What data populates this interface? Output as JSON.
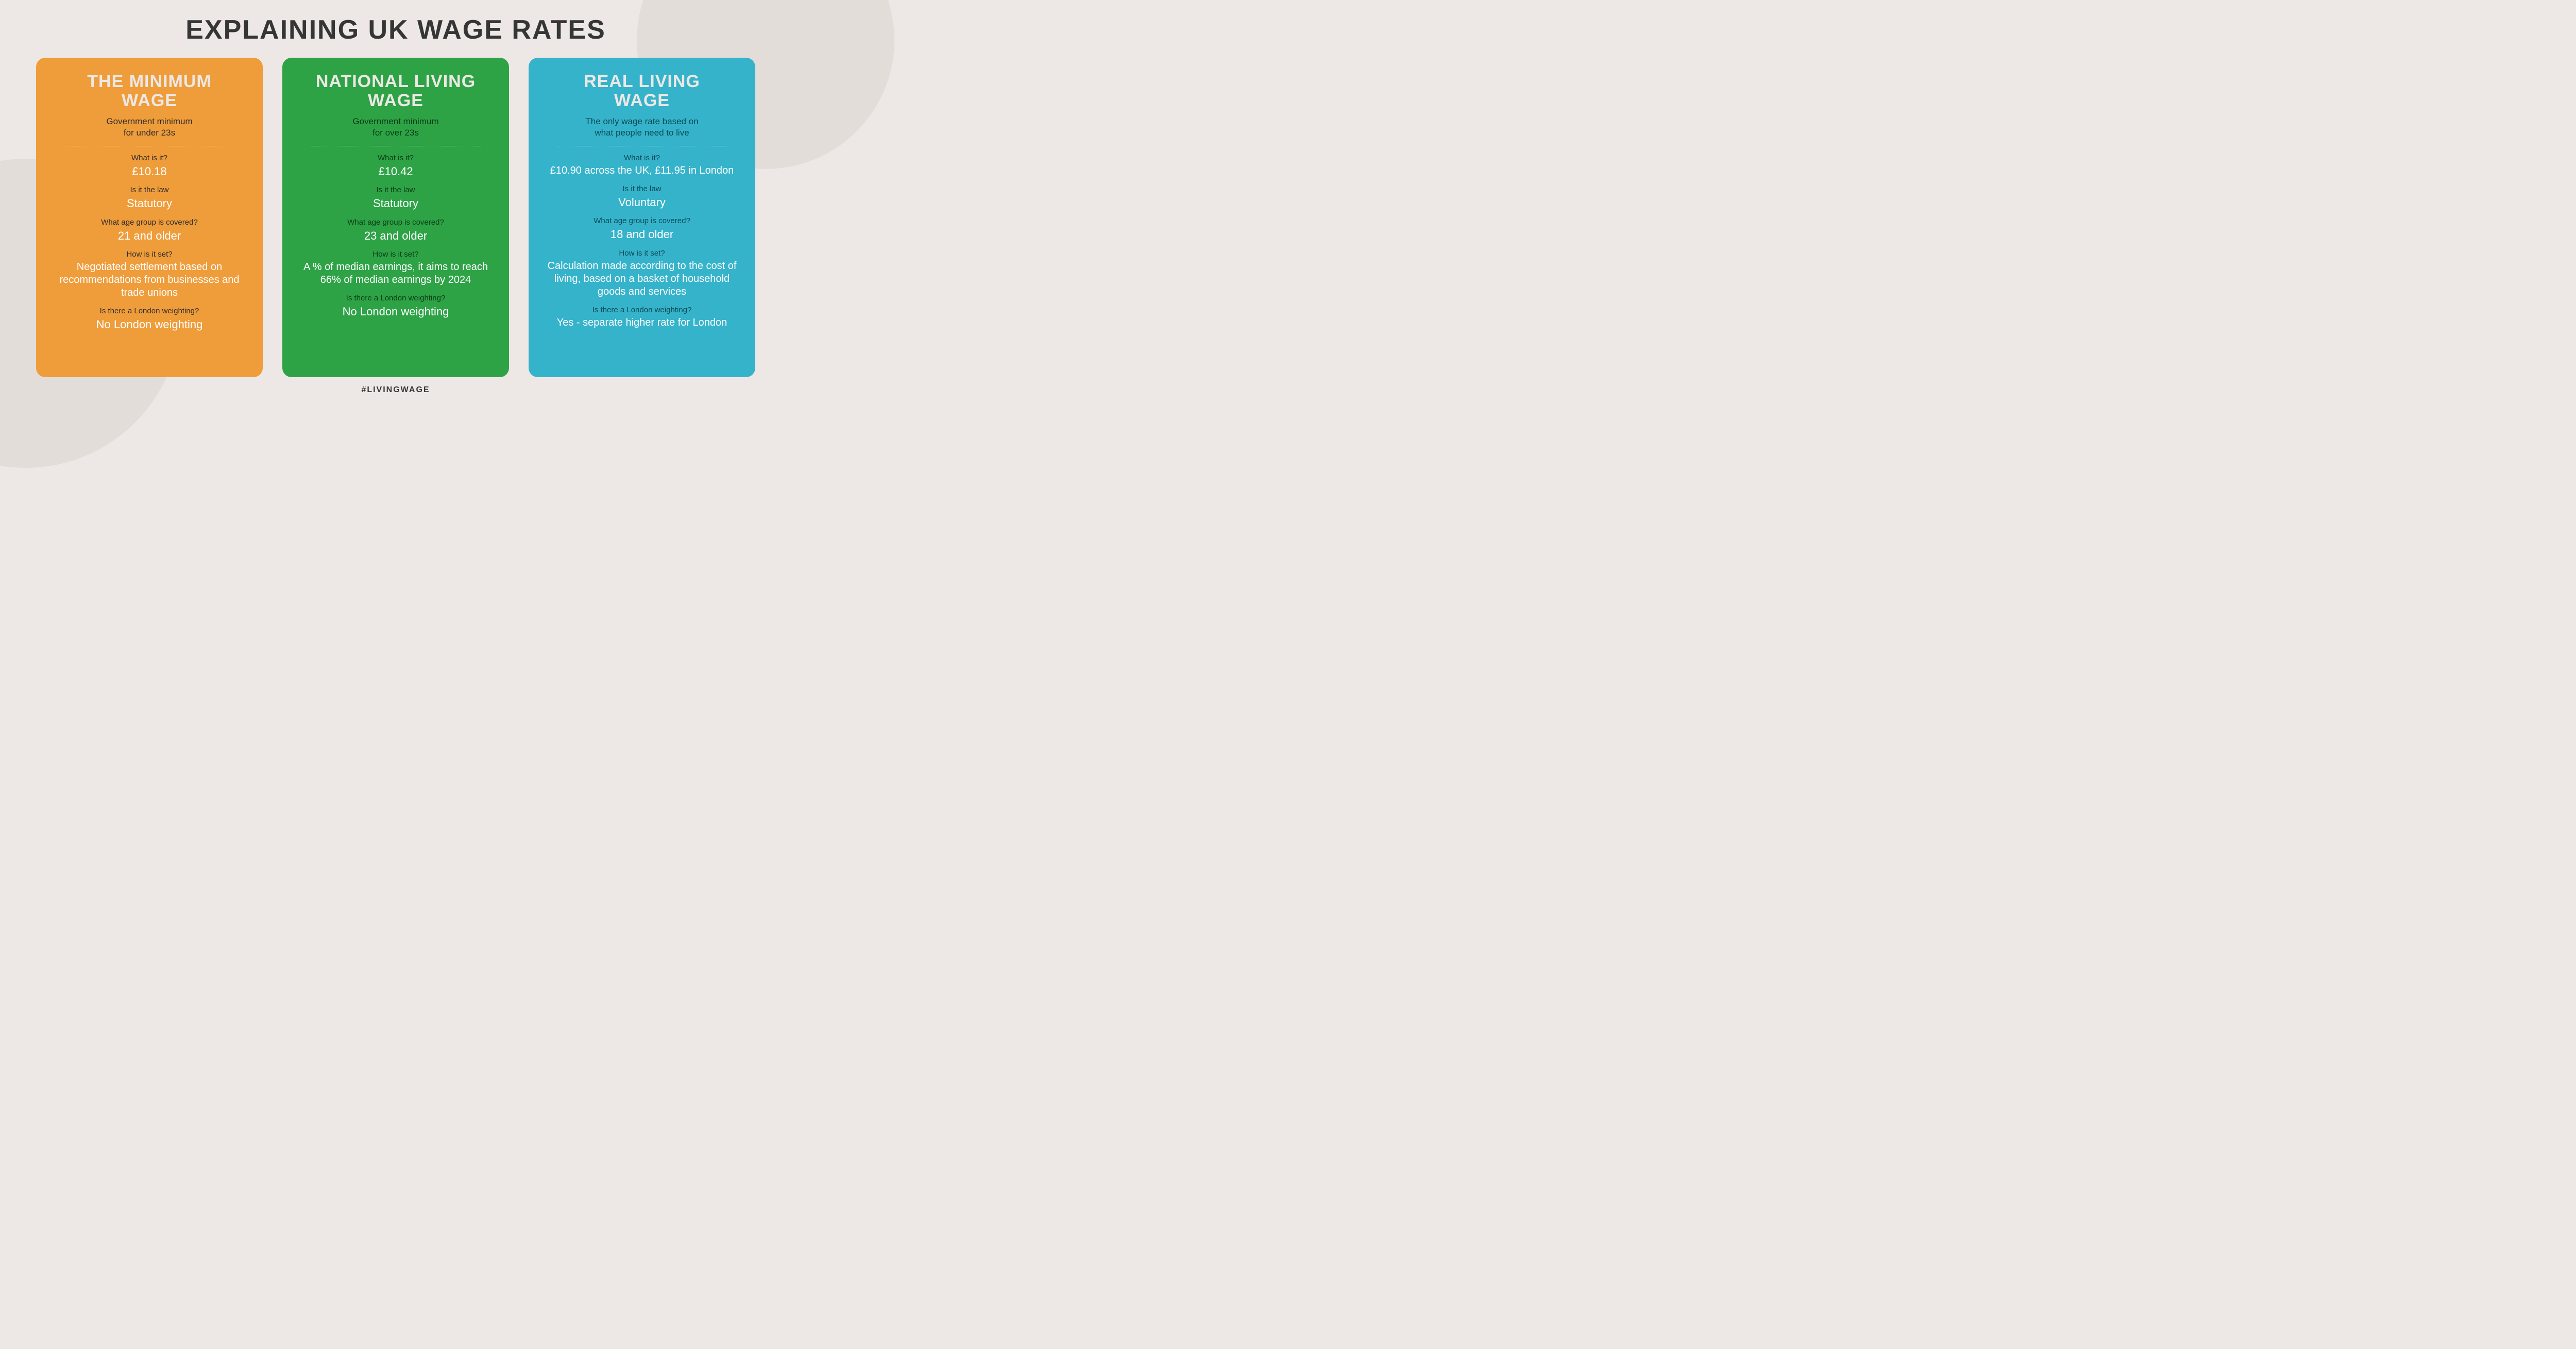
{
  "title": "EXPLAINING UK WAGE RATES",
  "hashtag": "#LIVINGWAGE",
  "questions": {
    "what": "What is it?",
    "law": "Is it the law",
    "age": "What age group is covered?",
    "how": "How is it set?",
    "london": "Is there a London weighting?"
  },
  "cards": [
    {
      "title_line1": "THE MINIMUM",
      "title_line2": "WAGE",
      "subtitle_line1": "Government minimum",
      "subtitle_line2": "for under 23s",
      "what": "£10.18",
      "law": "Statutory",
      "age": "21 and older",
      "how": "Negotiated settlement based on recommendations from businesses and trade unions",
      "london": "No London weighting",
      "bg_color": "#ef9c3a"
    },
    {
      "title_line1": "NATIONAL LIVING",
      "title_line2": "WAGE",
      "subtitle_line1": "Government minimum",
      "subtitle_line2": "for over 23s",
      "what": "£10.42",
      "law": "Statutory",
      "age": "23 and older",
      "how": "A % of median earnings, it aims to reach 66% of median earnings by 2024",
      "london": "No London weighting",
      "bg_color": "#2da346"
    },
    {
      "title_line1": "REAL LIVING",
      "title_line2": "WAGE",
      "subtitle_line1": "The only wage rate based on",
      "subtitle_line2": "what people need to live",
      "what": "£10.90 across the UK, £11.95 in London",
      "law": "Voluntary",
      "age": "18 and older",
      "how": "Calculation made according to the cost of living, based on a basket of household goods and services",
      "london": "Yes - separate higher rate for London",
      "bg_color": "#35b3cb"
    }
  ],
  "colors": {
    "background": "#ede8e5",
    "background_shape": "#e3ddd9",
    "title_color": "#353535",
    "card_title_color": "#ede8e5"
  }
}
